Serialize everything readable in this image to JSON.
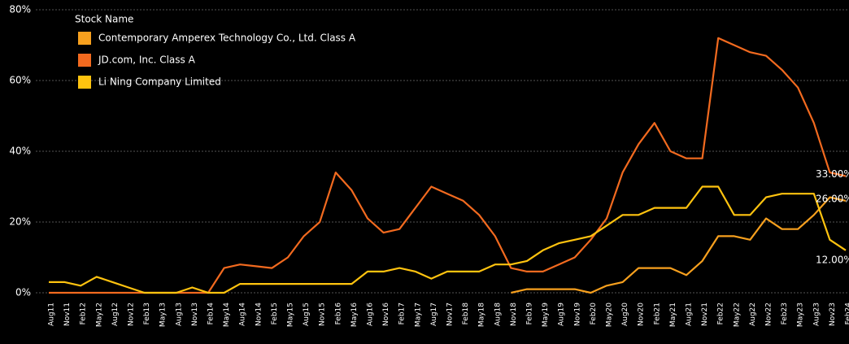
{
  "chart_data": {
    "type": "line",
    "legend_title": "Stock Name",
    "legend": "upper left",
    "grid": true,
    "categories": [
      "Aug11",
      "Nov11",
      "Feb12",
      "May12",
      "Aug12",
      "Nov12",
      "Feb13",
      "May13",
      "Aug13",
      "Nov13",
      "Feb14",
      "May14",
      "Aug14",
      "Nov14",
      "Feb15",
      "May15",
      "Aug15",
      "Nov15",
      "Feb16",
      "May16",
      "Aug16",
      "Nov16",
      "Feb17",
      "May17",
      "Aug17",
      "Nov17",
      "Feb18",
      "May18",
      "Aug18",
      "Nov18",
      "Feb19",
      "May19",
      "Aug19",
      "Nov19",
      "Feb20",
      "May20",
      "Aug20",
      "Nov20",
      "Feb21",
      "May21",
      "Aug21",
      "Nov21",
      "Feb22",
      "May22",
      "Aug22",
      "Nov22",
      "Feb23",
      "May23",
      "Aug23",
      "Nov23",
      "Feb24"
    ],
    "ylim": [
      0,
      80
    ],
    "yticks": [
      {
        "value": 0,
        "label": "0%"
      },
      {
        "value": 20,
        "label": "20%"
      },
      {
        "value": 40,
        "label": "40%"
      },
      {
        "value": 60,
        "label": "60%"
      },
      {
        "value": 80,
        "label": "80%"
      }
    ],
    "series": [
      {
        "name": "Contemporary Amperex Technology Co., Ltd. Class A",
        "color": "#f7a01e",
        "values": [
          null,
          null,
          null,
          null,
          null,
          null,
          null,
          null,
          null,
          null,
          null,
          null,
          null,
          null,
          null,
          null,
          null,
          null,
          null,
          null,
          null,
          null,
          null,
          null,
          null,
          null,
          null,
          null,
          null,
          0,
          1,
          1,
          1,
          1,
          0,
          2,
          3,
          7,
          7,
          7,
          5,
          9,
          16,
          16,
          15,
          21,
          18,
          18,
          22,
          27,
          26
        ],
        "value_labels": [
          null,
          null,
          null,
          null,
          null,
          null,
          null,
          null,
          null,
          null,
          null,
          null,
          null,
          null,
          null,
          null,
          null,
          null,
          null,
          null,
          null,
          null,
          null,
          null,
          null,
          null,
          null,
          null,
          null,
          null,
          null,
          null,
          null,
          null,
          null,
          null,
          null,
          null,
          null,
          null,
          null,
          null,
          null,
          null,
          null,
          null,
          null,
          null,
          null,
          null,
          "26.00%"
        ]
      },
      {
        "name": "JD.com, Inc. Class A",
        "color": "#f26a1f",
        "values": [
          0,
          0,
          0,
          0,
          0,
          0,
          0,
          0,
          0,
          0,
          0,
          7,
          8,
          7.5,
          7,
          10,
          16,
          20,
          34,
          29,
          21,
          17,
          18,
          24,
          30,
          28,
          26,
          22,
          16,
          7,
          6,
          6,
          8,
          10,
          15,
          21,
          34,
          42,
          48,
          40,
          38,
          38,
          72,
          70,
          68,
          67,
          63,
          58,
          48,
          34,
          33
        ],
        "value_labels": [
          null,
          null,
          null,
          null,
          null,
          null,
          null,
          null,
          null,
          null,
          null,
          null,
          null,
          null,
          null,
          null,
          null,
          null,
          null,
          null,
          null,
          null,
          null,
          null,
          null,
          null,
          null,
          null,
          null,
          null,
          null,
          null,
          null,
          null,
          null,
          null,
          null,
          null,
          null,
          null,
          null,
          null,
          null,
          null,
          null,
          null,
          null,
          null,
          null,
          null,
          "33.00%"
        ]
      },
      {
        "name": "Li Ning Company Limited",
        "color": "#ffc30f",
        "values": [
          3,
          3,
          2,
          4.5,
          3,
          1.5,
          0,
          0,
          0,
          1.5,
          0,
          0,
          2.5,
          2.5,
          2.5,
          2.5,
          2.5,
          2.5,
          2.5,
          2.5,
          6,
          6,
          7,
          6,
          4,
          6,
          6,
          6,
          8,
          8,
          9,
          12,
          14,
          15,
          16,
          19,
          22,
          22,
          24,
          24,
          24,
          30,
          30,
          22,
          22,
          27,
          28,
          28,
          28,
          15,
          12
        ],
        "value_labels": [
          null,
          null,
          null,
          null,
          null,
          null,
          null,
          null,
          null,
          null,
          null,
          null,
          null,
          null,
          null,
          null,
          null,
          null,
          null,
          null,
          null,
          null,
          null,
          null,
          null,
          null,
          null,
          null,
          null,
          null,
          null,
          null,
          null,
          null,
          null,
          null,
          null,
          null,
          null,
          null,
          null,
          null,
          null,
          null,
          null,
          null,
          null,
          null,
          null,
          null,
          "12.00%"
        ]
      }
    ]
  }
}
